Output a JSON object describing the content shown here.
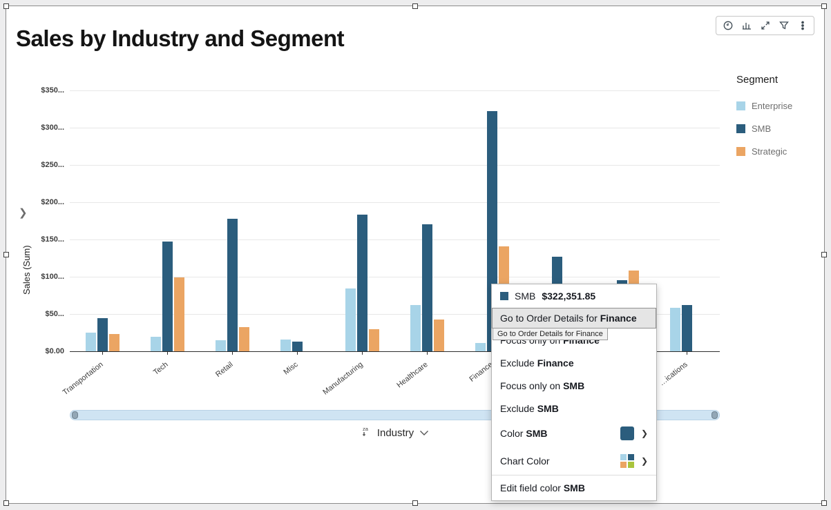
{
  "title": "Sales by Industry and Segment",
  "toolbar": {
    "icons": [
      "clock-icon",
      "chart-icon",
      "maximize-icon",
      "filter-icon",
      "kebab-menu-icon"
    ]
  },
  "y_axis": {
    "title": "Sales (Sum)",
    "ticks": [
      "$350...",
      "$300...",
      "$250...",
      "$200...",
      "$150...",
      "$100...",
      "$50...",
      "$0.00"
    ]
  },
  "x_axis": {
    "label": "Industry"
  },
  "legend": {
    "title": "Segment",
    "items": [
      {
        "label": "Enterprise",
        "color": "#a8d4e8"
      },
      {
        "label": "SMB",
        "color": "#2b5d7d"
      },
      {
        "label": "Strategic",
        "color": "#eba563"
      }
    ]
  },
  "chart_data": {
    "type": "bar",
    "title": "Sales by Industry and Segment",
    "xlabel": "Industry",
    "ylabel": "Sales (Sum)",
    "ylim": [
      0,
      350000
    ],
    "grid": true,
    "legend_position": "right",
    "categories": [
      "Transportation",
      "Tech",
      "Retail",
      "Misc",
      "Manufacturing",
      "Healthcare",
      "Finance",
      "",
      "",
      "…ications"
    ],
    "series": [
      {
        "name": "Enterprise",
        "color": "#a8d4e8",
        "values": [
          25000,
          19000,
          15000,
          16000,
          84000,
          62000,
          11000,
          null,
          null,
          58000
        ]
      },
      {
        "name": "SMB",
        "color": "#2b5d7d",
        "values": [
          44000,
          147000,
          178000,
          13000,
          183000,
          170000,
          322351.85,
          127000,
          95000,
          62000
        ]
      },
      {
        "name": "Strategic",
        "color": "#eba563",
        "values": [
          23000,
          99000,
          32000,
          null,
          30000,
          43000,
          141000,
          null,
          108000,
          null
        ]
      }
    ]
  },
  "context_menu": {
    "header": {
      "label": "SMB",
      "value": "$322,351.85",
      "swatch_color": "#2b5d7d"
    },
    "items": [
      {
        "prefix": "Go to Order Details for ",
        "bold": "Finance",
        "highlighted": true
      },
      {
        "prefix": "Focus only on ",
        "bold": "Finance"
      },
      {
        "prefix": "Exclude ",
        "bold": "Finance"
      },
      {
        "prefix": "Focus only on ",
        "bold": "SMB"
      },
      {
        "prefix": "Exclude ",
        "bold": "SMB"
      },
      {
        "prefix": "Color ",
        "bold": "SMB",
        "swatch": "#2b5d7d",
        "chevron": true,
        "tall": true
      },
      {
        "prefix": "Chart Color",
        "bold": "",
        "multi_swatch": [
          "#a8d4e8",
          "#2b5d7d",
          "#eba563",
          "#a9c43d"
        ],
        "chevron": true,
        "tall": true
      },
      {
        "prefix": "Edit field color ",
        "bold": "SMB",
        "divider": true
      }
    ],
    "tooltip": "Go to Order Details for Finance"
  }
}
